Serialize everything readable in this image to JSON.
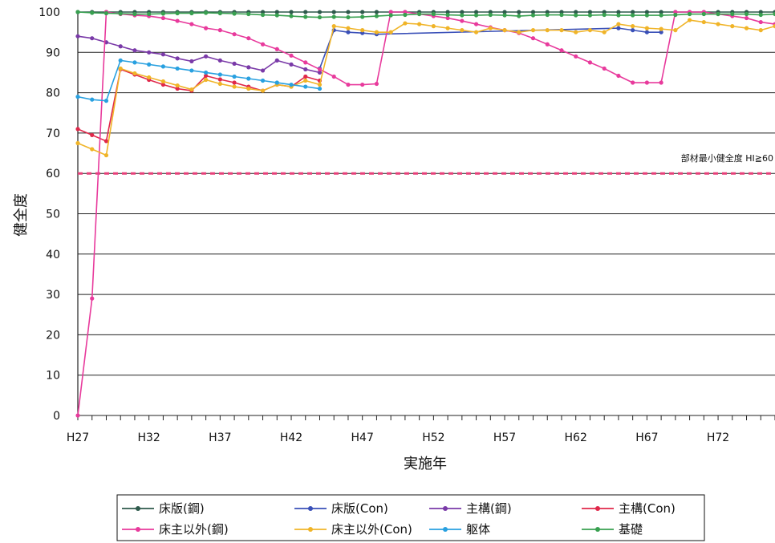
{
  "chart_data": {
    "type": "line",
    "xlabel": "実施年",
    "ylabel": "健全度",
    "ylim": [
      0,
      100
    ],
    "yticks": [
      0,
      10,
      20,
      30,
      40,
      50,
      60,
      70,
      80,
      90,
      100
    ],
    "x_tick_labels": [
      "H27",
      "H32",
      "H37",
      "H42",
      "H47",
      "H52",
      "H57",
      "H62",
      "H67",
      "H72"
    ],
    "x_tick_years": [
      27,
      32,
      37,
      42,
      47,
      52,
      57,
      62,
      67,
      72
    ],
    "xlim": [
      27,
      76
    ],
    "grid": "horizontal",
    "legend_position": "bottom",
    "threshold": {
      "value": 60,
      "label": "部材最小健全度 HI≧60",
      "color": "#e8407a"
    },
    "series": [
      {
        "name": "床版(鋼)",
        "color": "#2e5a4c",
        "points": [
          [
            27,
            100
          ],
          [
            28,
            100
          ],
          [
            29,
            100
          ],
          [
            30,
            100
          ],
          [
            31,
            100
          ],
          [
            32,
            100
          ],
          [
            33,
            100
          ],
          [
            34,
            100
          ],
          [
            35,
            100
          ],
          [
            36,
            100
          ],
          [
            37,
            100
          ],
          [
            38,
            100
          ],
          [
            39,
            100
          ],
          [
            40,
            100
          ],
          [
            41,
            100
          ],
          [
            42,
            100
          ],
          [
            43,
            100
          ],
          [
            44,
            100
          ],
          [
            45,
            100
          ],
          [
            46,
            100
          ],
          [
            47,
            100
          ],
          [
            48,
            100
          ],
          [
            49,
            100
          ],
          [
            50,
            100
          ],
          [
            51,
            100
          ],
          [
            52,
            100
          ],
          [
            53,
            100
          ],
          [
            54,
            100
          ],
          [
            55,
            100
          ],
          [
            56,
            100
          ],
          [
            57,
            100
          ],
          [
            58,
            100
          ],
          [
            59,
            100
          ],
          [
            60,
            100
          ],
          [
            61,
            100
          ],
          [
            62,
            100
          ],
          [
            63,
            100
          ],
          [
            64,
            100
          ],
          [
            65,
            100
          ],
          [
            66,
            100
          ],
          [
            67,
            100
          ],
          [
            68,
            100
          ],
          [
            69,
            100
          ],
          [
            70,
            100
          ],
          [
            71,
            100
          ],
          [
            72,
            100
          ],
          [
            73,
            100
          ],
          [
            74,
            100
          ],
          [
            75,
            100
          ],
          [
            76,
            100
          ]
        ]
      },
      {
        "name": "床版(Con)",
        "color": "#3a50b8",
        "points": [
          [
            44,
            86
          ],
          [
            45,
            95.5
          ],
          [
            46,
            95
          ],
          [
            47,
            94.8
          ],
          [
            48,
            94.5
          ],
          [
            65,
            96
          ],
          [
            66,
            95.5
          ],
          [
            67,
            95
          ],
          [
            68,
            95
          ]
        ]
      },
      {
        "name": "主構(鋼)",
        "color": "#7a3aa8",
        "points": [
          [
            27,
            94
          ],
          [
            28,
            93.5
          ],
          [
            29,
            92.5
          ],
          [
            30,
            91.5
          ],
          [
            31,
            90.5
          ],
          [
            32,
            90
          ],
          [
            33,
            89.5
          ],
          [
            34,
            88.5
          ],
          [
            35,
            87.8
          ],
          [
            36,
            89
          ],
          [
            37,
            88
          ],
          [
            38,
            87.2
          ],
          [
            39,
            86.3
          ],
          [
            40,
            85.5
          ],
          [
            41,
            88
          ],
          [
            42,
            87
          ],
          [
            43,
            85.8
          ],
          [
            44,
            85
          ]
        ]
      },
      {
        "name": "主構(Con)",
        "color": "#e0284a",
        "points": [
          [
            27,
            71
          ],
          [
            28,
            69.5
          ],
          [
            29,
            68
          ],
          [
            30,
            85.8
          ],
          [
            31,
            84.5
          ],
          [
            32,
            83.2
          ],
          [
            33,
            82
          ],
          [
            34,
            81
          ],
          [
            35,
            80.5
          ],
          [
            36,
            84.2
          ],
          [
            37,
            83.3
          ],
          [
            38,
            82.5
          ],
          [
            39,
            81.5
          ],
          [
            40,
            80.5
          ],
          [
            41,
            82
          ],
          [
            42,
            81.5
          ],
          [
            43,
            84
          ],
          [
            44,
            83
          ]
        ]
      },
      {
        "name": "床主以外(鋼)",
        "color": "#e83a9c",
        "points": [
          [
            27,
            0
          ],
          [
            28,
            29
          ],
          [
            29,
            100
          ],
          [
            30,
            99.5
          ],
          [
            31,
            99.2
          ],
          [
            32,
            99
          ],
          [
            33,
            98.5
          ],
          [
            34,
            97.8
          ],
          [
            35,
            97
          ],
          [
            36,
            96
          ],
          [
            37,
            95.5
          ],
          [
            38,
            94.5
          ],
          [
            39,
            93.5
          ],
          [
            40,
            92
          ],
          [
            41,
            90.8
          ],
          [
            42,
            89.2
          ],
          [
            43,
            87.5
          ],
          [
            44,
            85.8
          ],
          [
            45,
            84
          ],
          [
            46,
            82
          ],
          [
            47,
            82
          ],
          [
            48,
            82.2
          ],
          [
            49,
            100
          ],
          [
            50,
            100
          ],
          [
            51,
            99.5
          ],
          [
            52,
            99
          ],
          [
            53,
            98.5
          ],
          [
            54,
            97.8
          ],
          [
            55,
            97
          ],
          [
            56,
            96.2
          ],
          [
            57,
            95.5
          ],
          [
            58,
            94.8
          ],
          [
            59,
            93.5
          ],
          [
            60,
            92
          ],
          [
            61,
            90.5
          ],
          [
            62,
            89
          ],
          [
            63,
            87.5
          ],
          [
            64,
            86
          ],
          [
            65,
            84.2
          ],
          [
            66,
            82.5
          ],
          [
            67,
            82.5
          ],
          [
            68,
            82.5
          ],
          [
            69,
            100
          ],
          [
            70,
            100
          ],
          [
            71,
            100
          ],
          [
            72,
            99.5
          ],
          [
            73,
            99
          ],
          [
            74,
            98.5
          ],
          [
            75,
            97.5
          ],
          [
            76,
            97
          ]
        ]
      },
      {
        "name": "床主以外(Con)",
        "color": "#f0b428",
        "points": [
          [
            27,
            67.5
          ],
          [
            28,
            66
          ],
          [
            29,
            64.5
          ],
          [
            30,
            86
          ],
          [
            31,
            84.8
          ],
          [
            32,
            83.8
          ],
          [
            33,
            82.8
          ],
          [
            34,
            81.8
          ],
          [
            35,
            80.8
          ],
          [
            36,
            83.2
          ],
          [
            37,
            82.2
          ],
          [
            38,
            81.5
          ],
          [
            39,
            81
          ],
          [
            40,
            80.5
          ],
          [
            41,
            82
          ],
          [
            42,
            81.5
          ],
          [
            43,
            83
          ],
          [
            44,
            82
          ],
          [
            45,
            96.5
          ],
          [
            46,
            96
          ],
          [
            47,
            95.5
          ],
          [
            48,
            95
          ],
          [
            49,
            95
          ],
          [
            50,
            97.2
          ],
          [
            51,
            97
          ],
          [
            52,
            96.5
          ],
          [
            53,
            96
          ],
          [
            54,
            95.5
          ],
          [
            55,
            95
          ],
          [
            56,
            96
          ],
          [
            57,
            95.5
          ],
          [
            58,
            95
          ],
          [
            59,
            95.5
          ],
          [
            60,
            95.5
          ],
          [
            61,
            95.5
          ],
          [
            62,
            95
          ],
          [
            63,
            95.5
          ],
          [
            64,
            95
          ],
          [
            65,
            97
          ],
          [
            66,
            96.5
          ],
          [
            67,
            96
          ],
          [
            68,
            95.8
          ],
          [
            69,
            95.5
          ],
          [
            70,
            98
          ],
          [
            71,
            97.5
          ],
          [
            72,
            97
          ],
          [
            73,
            96.5
          ],
          [
            74,
            96
          ],
          [
            75,
            95.5
          ],
          [
            76,
            96.5
          ]
        ]
      },
      {
        "name": "躯体",
        "color": "#28a0e0",
        "points": [
          [
            27,
            79
          ],
          [
            28,
            78.3
          ],
          [
            29,
            78
          ],
          [
            30,
            88
          ],
          [
            31,
            87.5
          ],
          [
            32,
            87
          ],
          [
            33,
            86.5
          ],
          [
            34,
            86
          ],
          [
            35,
            85.5
          ],
          [
            36,
            85
          ],
          [
            37,
            84.5
          ],
          [
            38,
            84
          ],
          [
            39,
            83.5
          ],
          [
            40,
            83
          ],
          [
            41,
            82.5
          ],
          [
            42,
            82
          ],
          [
            43,
            81.5
          ],
          [
            44,
            81
          ]
        ]
      },
      {
        "name": "基礎",
        "color": "#38a050",
        "points": [
          [
            27,
            100
          ],
          [
            28,
            99.8
          ],
          [
            29,
            99.7
          ],
          [
            30,
            99.6
          ],
          [
            31,
            99.5
          ],
          [
            32,
            99.5
          ],
          [
            33,
            99.6
          ],
          [
            34,
            99.7
          ],
          [
            35,
            99.7
          ],
          [
            36,
            99.8
          ],
          [
            37,
            99.7
          ],
          [
            38,
            99.6
          ],
          [
            39,
            99.5
          ],
          [
            40,
            99.3
          ],
          [
            41,
            99.2
          ],
          [
            42,
            99
          ],
          [
            43,
            98.8
          ],
          [
            44,
            98.7
          ],
          [
            45,
            98.8
          ],
          [
            46,
            98.7
          ],
          [
            47,
            98.8
          ],
          [
            48,
            99
          ],
          [
            49,
            99.2
          ],
          [
            50,
            99.3
          ],
          [
            51,
            99.5
          ],
          [
            52,
            99.5
          ],
          [
            53,
            99.3
          ],
          [
            54,
            99.2
          ],
          [
            55,
            99.2
          ],
          [
            56,
            99.3
          ],
          [
            57,
            99.2
          ],
          [
            58,
            99
          ],
          [
            59,
            99.2
          ],
          [
            60,
            99.3
          ],
          [
            61,
            99.3
          ],
          [
            62,
            99.2
          ],
          [
            63,
            99.2
          ],
          [
            64,
            99.3
          ],
          [
            65,
            99.2
          ],
          [
            66,
            99.2
          ],
          [
            67,
            99.2
          ],
          [
            68,
            99.2
          ],
          [
            69,
            99.3
          ],
          [
            70,
            99.5
          ],
          [
            71,
            99.5
          ],
          [
            72,
            99.5
          ],
          [
            73,
            99.5
          ],
          [
            74,
            99.5
          ],
          [
            75,
            99.3
          ],
          [
            76,
            99.5
          ]
        ]
      }
    ]
  }
}
